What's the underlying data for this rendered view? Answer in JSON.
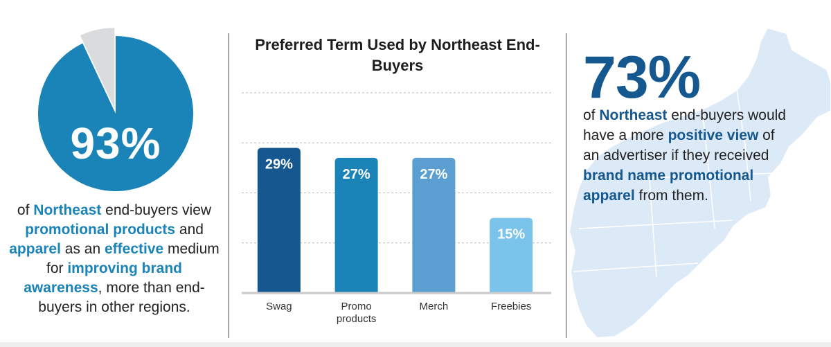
{
  "left": {
    "pie_value": 93,
    "big_label": "93%",
    "colors": {
      "pie_fill": "#1a84b8",
      "pie_rest": "#dadbdd"
    },
    "text": {
      "p1": "of ",
      "h1": "Northeast",
      "p2": " end-buyers view ",
      "h2": "promotional products",
      "p3": " and ",
      "h3": "apparel",
      "p4": " as an ",
      "h4": "effective",
      "p5": " medium for ",
      "h5": "improving brand awareness",
      "p6": ", more than end-buyers in other regions."
    }
  },
  "chart_data": {
    "type": "bar",
    "title": "Preferred Term Used by Northeast End-Buyers",
    "categories": [
      "Swag",
      "Promo products",
      "Merch",
      "Freebies"
    ],
    "category_lines": [
      [
        "Swag"
      ],
      [
        "Promo",
        "products"
      ],
      [
        "Merch"
      ],
      [
        "Freebies"
      ]
    ],
    "values": [
      29,
      27,
      27,
      15
    ],
    "data_labels": [
      "29%",
      "27%",
      "27%",
      "15%"
    ],
    "ylim": [
      0,
      40
    ],
    "gridlines": [
      10,
      20,
      30,
      40
    ],
    "grid": true,
    "bar_colors": [
      "#14588f",
      "#1a84b8",
      "#5b9fd2",
      "#7ac3ea"
    ]
  },
  "right": {
    "big_label": "73%",
    "text": {
      "p1": "of ",
      "h1": "Northeast",
      "p2": " end-buyers would have a more ",
      "h2": "positive view",
      "p3": " of an advertiser if they received ",
      "h3": "brand name promotional apparel",
      "p4": " from them."
    },
    "colors": {
      "map_fill": "#dceaf8",
      "map_border": "#ffffff"
    }
  }
}
